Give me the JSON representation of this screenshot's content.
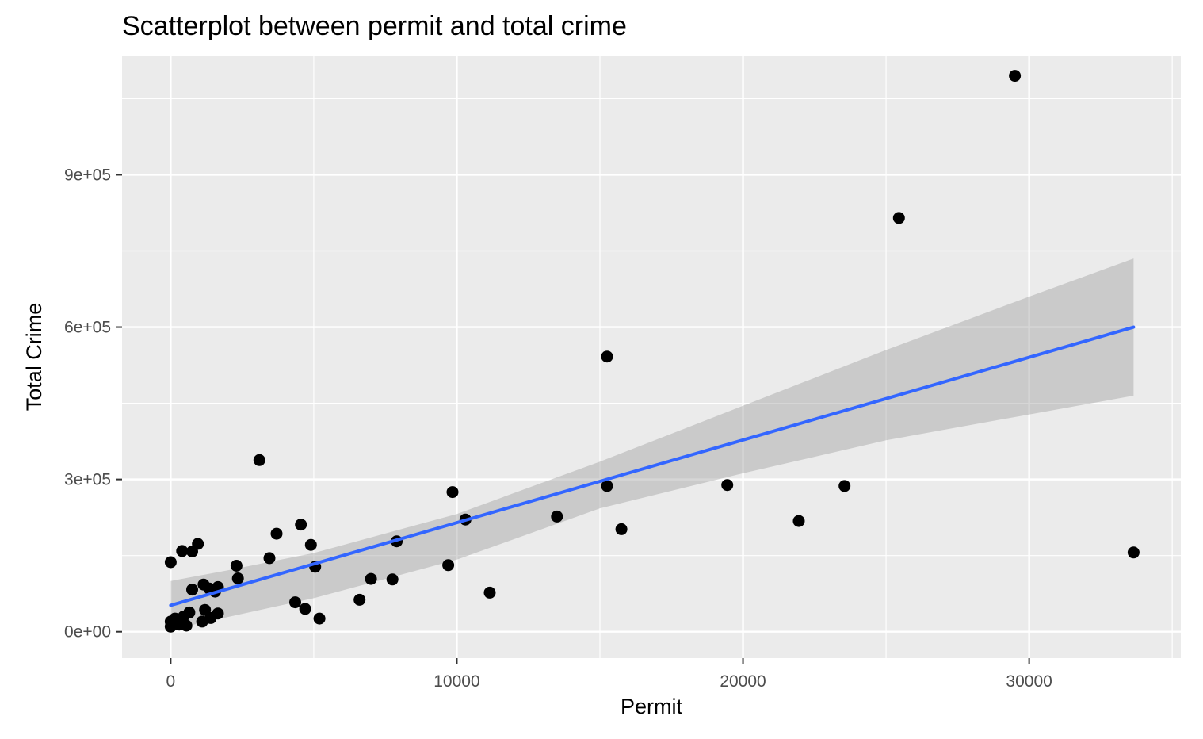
{
  "chart_data": {
    "type": "scatter",
    "title": "Scatterplot between permit and total crime",
    "xlabel": "Permit",
    "ylabel": "Total Crime",
    "xlim": [
      -1700,
      35300
    ],
    "ylim": [
      -52000,
      1135000
    ],
    "x_ticks": [
      0,
      10000,
      20000,
      30000
    ],
    "x_tick_labels": [
      "0",
      "10000",
      "20000",
      "30000"
    ],
    "y_ticks": [
      0,
      300000,
      600000,
      900000
    ],
    "y_tick_labels": [
      "0e+00",
      "3e+05",
      "6e+05",
      "9e+05"
    ],
    "grid": true,
    "colors": {
      "panel_background": "#ebebeb",
      "grid": "#ffffff",
      "points": "#000000",
      "fit_line": "#3366ff",
      "confidence_band": "#999999"
    },
    "points": [
      {
        "x": 0,
        "y": 137000
      },
      {
        "x": 400,
        "y": 159000
      },
      {
        "x": 750,
        "y": 158000
      },
      {
        "x": 950,
        "y": 173000
      },
      {
        "x": 0,
        "y": 20000
      },
      {
        "x": 0,
        "y": 10000
      },
      {
        "x": 150,
        "y": 26000
      },
      {
        "x": 300,
        "y": 14000
      },
      {
        "x": 450,
        "y": 30000
      },
      {
        "x": 550,
        "y": 12000
      },
      {
        "x": 650,
        "y": 38000
      },
      {
        "x": 750,
        "y": 83000
      },
      {
        "x": 1100,
        "y": 20000
      },
      {
        "x": 1150,
        "y": 93000
      },
      {
        "x": 1200,
        "y": 43000
      },
      {
        "x": 1350,
        "y": 85000
      },
      {
        "x": 1400,
        "y": 27000
      },
      {
        "x": 1550,
        "y": 79000
      },
      {
        "x": 1650,
        "y": 88000
      },
      {
        "x": 1650,
        "y": 36000
      },
      {
        "x": 2300,
        "y": 130000
      },
      {
        "x": 2350,
        "y": 105000
      },
      {
        "x": 3100,
        "y": 338000
      },
      {
        "x": 3450,
        "y": 145000
      },
      {
        "x": 3700,
        "y": 193000
      },
      {
        "x": 4350,
        "y": 58000
      },
      {
        "x": 4550,
        "y": 211000
      },
      {
        "x": 4700,
        "y": 45000
      },
      {
        "x": 4900,
        "y": 171000
      },
      {
        "x": 5050,
        "y": 128000
      },
      {
        "x": 5200,
        "y": 26000
      },
      {
        "x": 6600,
        "y": 63000
      },
      {
        "x": 7000,
        "y": 104000
      },
      {
        "x": 7750,
        "y": 103000
      },
      {
        "x": 7900,
        "y": 178000
      },
      {
        "x": 9700,
        "y": 131000
      },
      {
        "x": 9850,
        "y": 275000
      },
      {
        "x": 10300,
        "y": 221000
      },
      {
        "x": 11150,
        "y": 77000
      },
      {
        "x": 13500,
        "y": 227000
      },
      {
        "x": 15250,
        "y": 542000
      },
      {
        "x": 15250,
        "y": 287000
      },
      {
        "x": 15750,
        "y": 202000
      },
      {
        "x": 19450,
        "y": 289000
      },
      {
        "x": 21950,
        "y": 218000
      },
      {
        "x": 23550,
        "y": 287000
      },
      {
        "x": 25450,
        "y": 815000
      },
      {
        "x": 29500,
        "y": 1095000
      },
      {
        "x": 33650,
        "y": 156000
      }
    ],
    "fit": {
      "method": "linear",
      "x": [
        0,
        33650
      ],
      "y": [
        52000,
        600000
      ]
    },
    "confidence_band": {
      "x": [
        0,
        2000,
        5000,
        10000,
        15000,
        20000,
        25000,
        30000,
        33650
      ],
      "upper": [
        100000,
        121000,
        155000,
        232000,
        335000,
        445000,
        555000,
        660000,
        735000
      ],
      "lower": [
        4000,
        29000,
        66000,
        142000,
        243000,
        312000,
        377000,
        428000,
        465000
      ]
    }
  }
}
